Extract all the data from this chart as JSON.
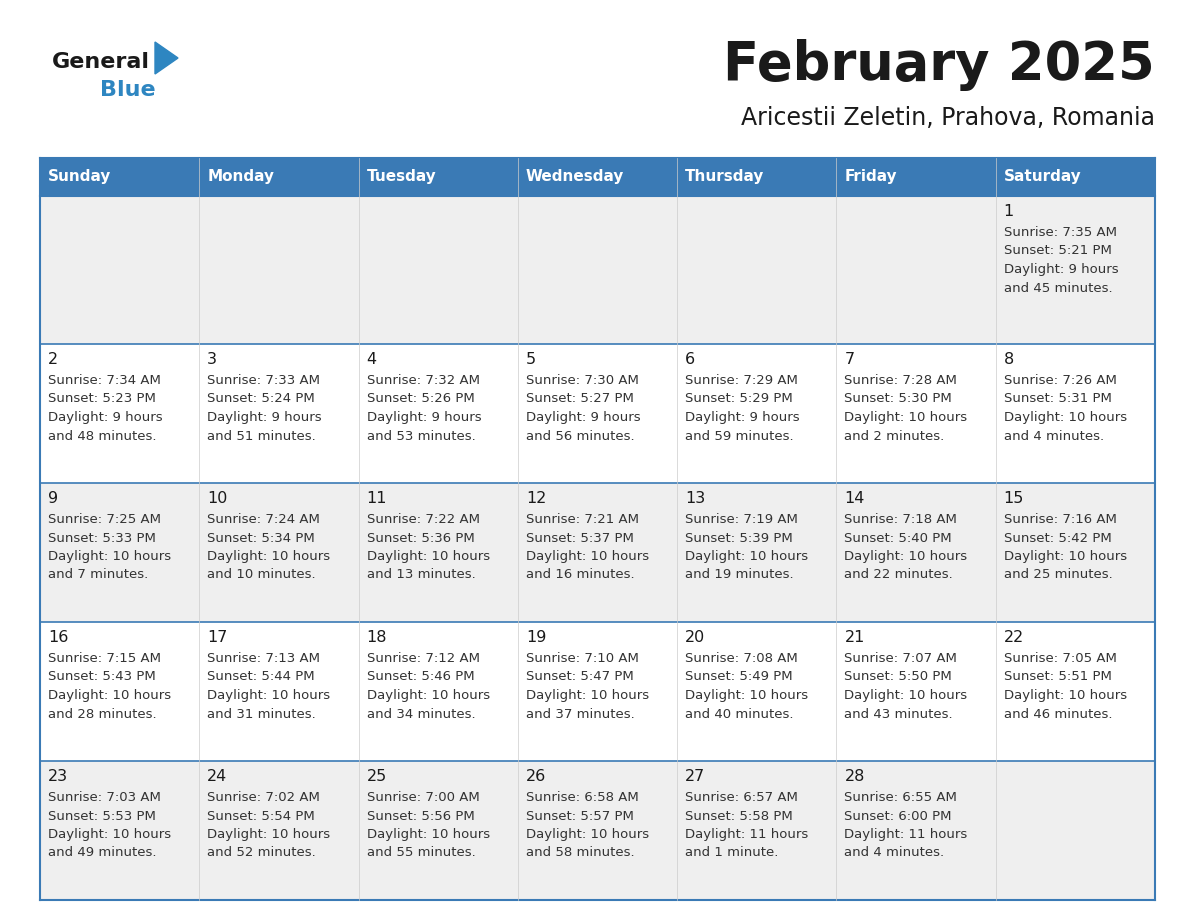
{
  "title": "February 2025",
  "subtitle": "Aricestii Zeletin, Prahova, Romania",
  "header_color": "#3a7ab5",
  "header_text_color": "#ffffff",
  "row_colors": [
    "#efefef",
    "#ffffff",
    "#efefef",
    "#ffffff",
    "#efefef"
  ],
  "border_color": "#3a7ab5",
  "grid_line_color": "#cccccc",
  "day_headers": [
    "Sunday",
    "Monday",
    "Tuesday",
    "Wednesday",
    "Thursday",
    "Friday",
    "Saturday"
  ],
  "title_color": "#1a1a1a",
  "subtitle_color": "#1a1a1a",
  "cell_text_color": "#333333",
  "day_num_color": "#1a1a1a",
  "logo_general_color": "#1a1a1a",
  "logo_blue_color": "#2e86c1",
  "days": [
    {
      "date": 1,
      "col": 6,
      "row": 0,
      "sunrise": "7:35 AM",
      "sunset": "5:21 PM",
      "daylight": "9 hours\nand 45 minutes."
    },
    {
      "date": 2,
      "col": 0,
      "row": 1,
      "sunrise": "7:34 AM",
      "sunset": "5:23 PM",
      "daylight": "9 hours\nand 48 minutes."
    },
    {
      "date": 3,
      "col": 1,
      "row": 1,
      "sunrise": "7:33 AM",
      "sunset": "5:24 PM",
      "daylight": "9 hours\nand 51 minutes."
    },
    {
      "date": 4,
      "col": 2,
      "row": 1,
      "sunrise": "7:32 AM",
      "sunset": "5:26 PM",
      "daylight": "9 hours\nand 53 minutes."
    },
    {
      "date": 5,
      "col": 3,
      "row": 1,
      "sunrise": "7:30 AM",
      "sunset": "5:27 PM",
      "daylight": "9 hours\nand 56 minutes."
    },
    {
      "date": 6,
      "col": 4,
      "row": 1,
      "sunrise": "7:29 AM",
      "sunset": "5:29 PM",
      "daylight": "9 hours\nand 59 minutes."
    },
    {
      "date": 7,
      "col": 5,
      "row": 1,
      "sunrise": "7:28 AM",
      "sunset": "5:30 PM",
      "daylight": "10 hours\nand 2 minutes."
    },
    {
      "date": 8,
      "col": 6,
      "row": 1,
      "sunrise": "7:26 AM",
      "sunset": "5:31 PM",
      "daylight": "10 hours\nand 4 minutes."
    },
    {
      "date": 9,
      "col": 0,
      "row": 2,
      "sunrise": "7:25 AM",
      "sunset": "5:33 PM",
      "daylight": "10 hours\nand 7 minutes."
    },
    {
      "date": 10,
      "col": 1,
      "row": 2,
      "sunrise": "7:24 AM",
      "sunset": "5:34 PM",
      "daylight": "10 hours\nand 10 minutes."
    },
    {
      "date": 11,
      "col": 2,
      "row": 2,
      "sunrise": "7:22 AM",
      "sunset": "5:36 PM",
      "daylight": "10 hours\nand 13 minutes."
    },
    {
      "date": 12,
      "col": 3,
      "row": 2,
      "sunrise": "7:21 AM",
      "sunset": "5:37 PM",
      "daylight": "10 hours\nand 16 minutes."
    },
    {
      "date": 13,
      "col": 4,
      "row": 2,
      "sunrise": "7:19 AM",
      "sunset": "5:39 PM",
      "daylight": "10 hours\nand 19 minutes."
    },
    {
      "date": 14,
      "col": 5,
      "row": 2,
      "sunrise": "7:18 AM",
      "sunset": "5:40 PM",
      "daylight": "10 hours\nand 22 minutes."
    },
    {
      "date": 15,
      "col": 6,
      "row": 2,
      "sunrise": "7:16 AM",
      "sunset": "5:42 PM",
      "daylight": "10 hours\nand 25 minutes."
    },
    {
      "date": 16,
      "col": 0,
      "row": 3,
      "sunrise": "7:15 AM",
      "sunset": "5:43 PM",
      "daylight": "10 hours\nand 28 minutes."
    },
    {
      "date": 17,
      "col": 1,
      "row": 3,
      "sunrise": "7:13 AM",
      "sunset": "5:44 PM",
      "daylight": "10 hours\nand 31 minutes."
    },
    {
      "date": 18,
      "col": 2,
      "row": 3,
      "sunrise": "7:12 AM",
      "sunset": "5:46 PM",
      "daylight": "10 hours\nand 34 minutes."
    },
    {
      "date": 19,
      "col": 3,
      "row": 3,
      "sunrise": "7:10 AM",
      "sunset": "5:47 PM",
      "daylight": "10 hours\nand 37 minutes."
    },
    {
      "date": 20,
      "col": 4,
      "row": 3,
      "sunrise": "7:08 AM",
      "sunset": "5:49 PM",
      "daylight": "10 hours\nand 40 minutes."
    },
    {
      "date": 21,
      "col": 5,
      "row": 3,
      "sunrise": "7:07 AM",
      "sunset": "5:50 PM",
      "daylight": "10 hours\nand 43 minutes."
    },
    {
      "date": 22,
      "col": 6,
      "row": 3,
      "sunrise": "7:05 AM",
      "sunset": "5:51 PM",
      "daylight": "10 hours\nand 46 minutes."
    },
    {
      "date": 23,
      "col": 0,
      "row": 4,
      "sunrise": "7:03 AM",
      "sunset": "5:53 PM",
      "daylight": "10 hours\nand 49 minutes."
    },
    {
      "date": 24,
      "col": 1,
      "row": 4,
      "sunrise": "7:02 AM",
      "sunset": "5:54 PM",
      "daylight": "10 hours\nand 52 minutes."
    },
    {
      "date": 25,
      "col": 2,
      "row": 4,
      "sunrise": "7:00 AM",
      "sunset": "5:56 PM",
      "daylight": "10 hours\nand 55 minutes."
    },
    {
      "date": 26,
      "col": 3,
      "row": 4,
      "sunrise": "6:58 AM",
      "sunset": "5:57 PM",
      "daylight": "10 hours\nand 58 minutes."
    },
    {
      "date": 27,
      "col": 4,
      "row": 4,
      "sunrise": "6:57 AM",
      "sunset": "5:58 PM",
      "daylight": "11 hours\nand 1 minute."
    },
    {
      "date": 28,
      "col": 5,
      "row": 4,
      "sunrise": "6:55 AM",
      "sunset": "6:00 PM",
      "daylight": "11 hours\nand 4 minutes."
    }
  ]
}
